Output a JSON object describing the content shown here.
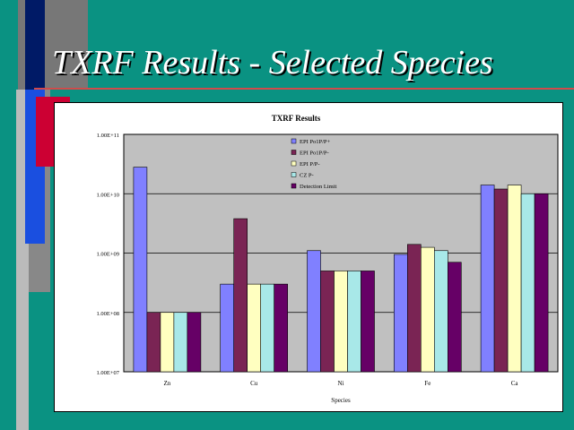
{
  "slide": {
    "title": "TXRF Results - Selected Species",
    "colors": {
      "background": "#0a9282",
      "title_rule": "#d24a4a",
      "decor": [
        "#001a66",
        "#1a4fe0",
        "#cc0033",
        "#777777",
        "#bbbbbb"
      ]
    }
  },
  "chart_data": {
    "type": "bar",
    "title": "TXRF Results",
    "xlabel": "Species",
    "ylabel": "",
    "scale": "log",
    "ylim": [
      10000000,
      100000000000
    ],
    "yticks": [
      "1.00E+07",
      "1.00E+08",
      "1.00E+09",
      "1.00E+10",
      "1.00E+11"
    ],
    "categories": [
      "Zn",
      "Cu",
      "Ni",
      "Fe",
      "Ca"
    ],
    "grid": true,
    "legend_position": "top-center",
    "plot_background": "#c0c0c0",
    "series": [
      {
        "name": "EPI Po1P/P+",
        "color": "#8080ff",
        "values": [
          28000000000,
          300000000,
          1100000000,
          950000000,
          14000000000
        ]
      },
      {
        "name": "EPI Po1P/P-",
        "color": "#7a2454",
        "values": [
          100000000,
          3800000000,
          500000000,
          1400000000,
          12000000000
        ]
      },
      {
        "name": "EPI P/P-",
        "color": "#ffffc0",
        "values": [
          100000000,
          300000000,
          500000000,
          1250000000,
          14000000000
        ]
      },
      {
        "name": "CZ P-",
        "color": "#a8e8e8",
        "values": [
          100000000,
          300000000,
          500000000,
          1100000000,
          10000000000
        ]
      },
      {
        "name": "Detection Limit",
        "color": "#660066",
        "values": [
          100000000,
          300000000,
          500000000,
          700000000,
          10000000000
        ]
      }
    ]
  }
}
